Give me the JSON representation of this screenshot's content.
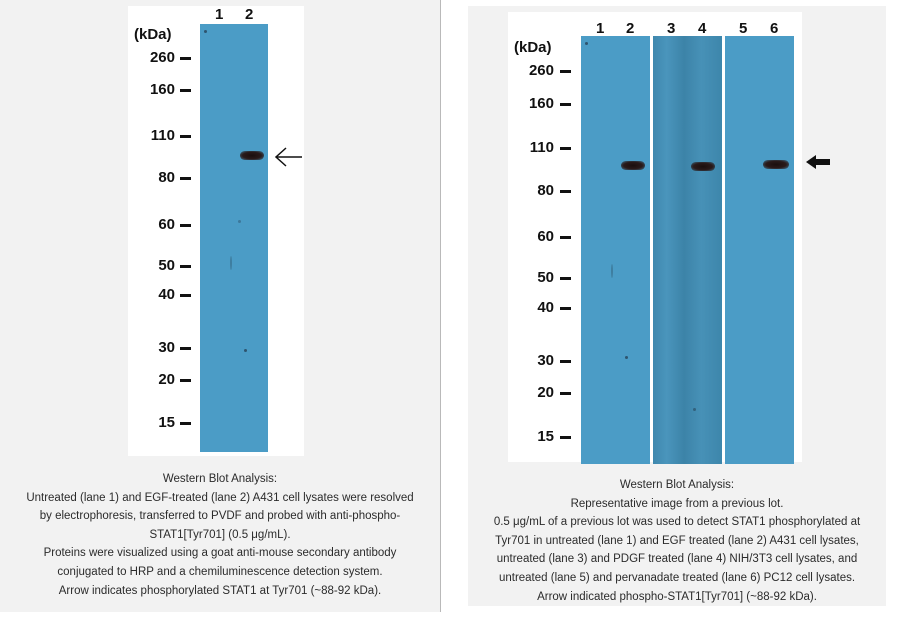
{
  "left_figure": {
    "units_label": "(kDa)",
    "lanes": [
      "1",
      "2"
    ],
    "markers": [
      "260",
      "160",
      "110",
      "80",
      "60",
      "50",
      "40",
      "30",
      "20",
      "15"
    ],
    "caption": [
      "Western Blot Analysis:",
      "Untreated (lane 1) and EGF-treated (lane 2) A431 cell lysates were resolved",
      "by electrophoresis, transferred to PVDF and probed with anti-phospho-",
      "STAT1[Tyr701] (0.5 μg/mL).",
      "Proteins were visualized using a goat anti-mouse secondary antibody",
      "conjugated to HRP and a chemiluminescence detection system.",
      "Arrow indicates phosphorylated STAT1 at Tyr701 (~88-92 kDa)."
    ]
  },
  "right_figure": {
    "units_label": "(kDa)",
    "lanes": [
      "1",
      "2",
      "3",
      "4",
      "5",
      "6"
    ],
    "markers": [
      "260",
      "160",
      "110",
      "80",
      "60",
      "50",
      "40",
      "30",
      "20",
      "15"
    ],
    "caption": [
      "Western Blot Analysis:",
      "Representative image from a previous lot.",
      "0.5 μg/mL of a previous lot was used to detect STAT1 phosphorylated at",
      "Tyr701 in untreated (lane 1) and EGF treated (lane 2) A431 cell lysates,",
      "untreated (lane 3) and PDGF treated (lane 4) NIH/3T3 cell lysates, and",
      "untreated (lane 5) and pervanadate treated (lane 6) PC12 cell lysates.",
      "Arrow indicated phospho-STAT1[Tyr701] (~88-92 kDa)."
    ]
  },
  "colors": {
    "membrane": "#4b9cc6",
    "band": "#1a0e0e",
    "panel_background": "#f2f2f2"
  }
}
